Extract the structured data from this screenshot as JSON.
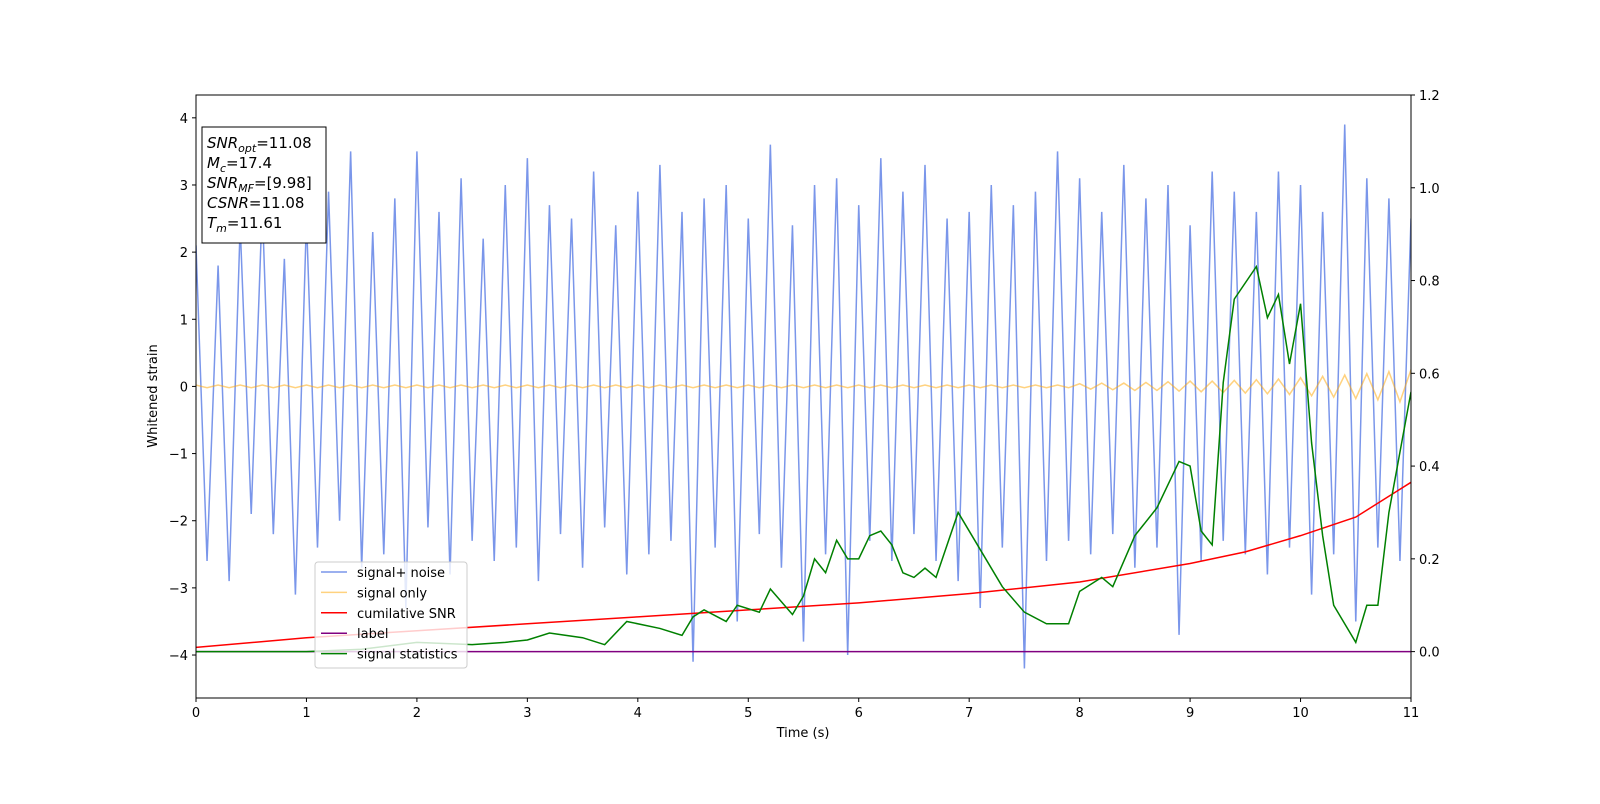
{
  "chart_data": {
    "type": "line",
    "xlabel": "Time (s)",
    "ylabel": "Whitened strain",
    "xlim": [
      0,
      11
    ],
    "ylim": [
      -4.64,
      4.34
    ],
    "y2lim": [
      -0.1,
      1.2
    ],
    "xticks": [
      0,
      1,
      2,
      3,
      4,
      5,
      6,
      7,
      8,
      9,
      10,
      11
    ],
    "yticks": [
      {
        "value": -4,
        "label": "−4"
      },
      {
        "value": -3,
        "label": "−3"
      },
      {
        "value": -2,
        "label": "−2"
      },
      {
        "value": -1,
        "label": "−1"
      },
      0,
      1,
      2,
      3,
      4
    ],
    "y2ticks": [
      {
        "value": 0,
        "label": "0.0"
      },
      {
        "value": 0.2,
        "label": "0.2"
      },
      {
        "value": 0.4,
        "label": "0.4"
      },
      {
        "value": 0.6,
        "label": "0.6"
      },
      {
        "value": 0.8,
        "label": "0.8"
      },
      {
        "value": 1.0,
        "label": "1.0"
      },
      {
        "value": 1.2,
        "label": "1.2"
      }
    ],
    "legend": "lower left",
    "annotation": [
      {
        "main": "SNR",
        "sub": "opt",
        "rest": "=11.08"
      },
      {
        "main": "M",
        "sub": "c",
        "rest": "=17.4"
      },
      {
        "main": "SNR",
        "sub": "MF",
        "rest": "=[9.98]"
      },
      {
        "main": "CSNR",
        "rest": "=11.08"
      },
      {
        "main": "T",
        "sub": "m",
        "rest": "=11.61"
      }
    ],
    "x": [
      0,
      0.1,
      0.2,
      0.3,
      0.4,
      0.5,
      0.6,
      0.7,
      0.8,
      0.9,
      1,
      1.1,
      1.2,
      1.3,
      1.4,
      1.5,
      1.6,
      1.7,
      1.8,
      1.9,
      2,
      2.1,
      2.2,
      2.3,
      2.4,
      2.5,
      2.6,
      2.7,
      2.8,
      2.9,
      3,
      3.1,
      3.2,
      3.3,
      3.4,
      3.5,
      3.6,
      3.7,
      3.8,
      3.9,
      4,
      4.1,
      4.2,
      4.3,
      4.4,
      4.5,
      4.6,
      4.7,
      4.8,
      4.9,
      5,
      5.1,
      5.2,
      5.3,
      5.4,
      5.5,
      5.6,
      5.7,
      5.8,
      5.9,
      6,
      6.1,
      6.2,
      6.3,
      6.4,
      6.5,
      6.6,
      6.7,
      6.8,
      6.9,
      7,
      7.1,
      7.2,
      7.3,
      7.4,
      7.5,
      7.6,
      7.7,
      7.8,
      7.9,
      8,
      8.1,
      8.2,
      8.3,
      8.4,
      8.5,
      8.6,
      8.7,
      8.8,
      8.9,
      9,
      9.1,
      9.2,
      9.3,
      9.4,
      9.5,
      9.6,
      9.7,
      9.8,
      9.9,
      10,
      10.1,
      10.2,
      10.3,
      10.4,
      10.5,
      10.6,
      10.7,
      10.8,
      10.9,
      11
    ],
    "series": [
      {
        "name": "signal+ noise",
        "color": "#4169e1",
        "opacity": 0.7,
        "values": [
          2.1,
          -2.6,
          1.8,
          -2.9,
          2.4,
          -1.9,
          2.7,
          -2.2,
          1.9,
          -3.1,
          2.5,
          -2.4,
          2.9,
          -2.0,
          3.5,
          -2.7,
          2.3,
          -2.5,
          2.8,
          -3.3,
          3.5,
          -2.1,
          2.6,
          -2.8,
          3.1,
          -2.3,
          2.2,
          -2.6,
          3.0,
          -2.4,
          3.4,
          -2.9,
          2.7,
          -2.2,
          2.5,
          -2.7,
          3.2,
          -2.1,
          2.4,
          -2.8,
          2.9,
          -2.5,
          3.3,
          -2.3,
          2.6,
          -4.1,
          2.8,
          -2.4,
          3.0,
          -3.5,
          2.5,
          -2.2,
          3.6,
          -2.7,
          2.4,
          -3.8,
          3.0,
          -2.5,
          3.1,
          -4.0,
          2.7,
          -2.3,
          3.4,
          -2.6,
          2.9,
          -2.2,
          3.3,
          -2.6,
          2.5,
          -2.9,
          2.6,
          -3.3,
          3.0,
          -2.4,
          2.7,
          -4.2,
          2.9,
          -2.6,
          3.5,
          -2.3,
          3.1,
          -2.5,
          2.6,
          -2.2,
          3.3,
          -2.7,
          2.8,
          -2.4,
          3.0,
          -3.7,
          2.4,
          -2.6,
          3.2,
          -2.3,
          2.9,
          -2.5,
          2.6,
          -2.8,
          3.2,
          -2.4,
          3.0,
          -3.1,
          2.6,
          -2.5,
          3.9,
          -3.5,
          3.1,
          -2.4,
          2.8,
          -2.6,
          2.5
        ]
      },
      {
        "name": "signal only",
        "color": "#ffa500",
        "opacity": 0.5,
        "values": [
          0.02,
          -0.02,
          0.02,
          -0.02,
          0.02,
          -0.02,
          0.02,
          -0.02,
          0.02,
          -0.02,
          0.02,
          -0.02,
          0.02,
          -0.02,
          0.02,
          -0.02,
          0.02,
          -0.02,
          0.02,
          -0.02,
          0.02,
          -0.02,
          0.02,
          -0.02,
          0.02,
          -0.02,
          0.02,
          -0.02,
          0.02,
          -0.02,
          0.02,
          -0.02,
          0.02,
          -0.02,
          0.02,
          -0.02,
          0.02,
          -0.02,
          0.02,
          -0.02,
          0.02,
          -0.02,
          0.02,
          -0.02,
          0.02,
          -0.02,
          0.02,
          -0.02,
          0.02,
          -0.02,
          0.02,
          -0.02,
          0.02,
          -0.02,
          0.02,
          -0.02,
          0.02,
          -0.02,
          0.02,
          -0.02,
          0.02,
          -0.02,
          0.02,
          -0.02,
          0.02,
          -0.02,
          0.02,
          -0.02,
          0.02,
          -0.02,
          0.02,
          -0.02,
          0.02,
          -0.02,
          0.02,
          -0.02,
          0.02,
          -0.02,
          0.02,
          -0.02,
          0.04,
          -0.04,
          0.05,
          -0.05,
          0.05,
          -0.06,
          0.06,
          -0.06,
          0.07,
          -0.07,
          0.08,
          -0.08,
          0.08,
          -0.09,
          0.09,
          -0.1,
          0.1,
          -0.11,
          0.11,
          -0.12,
          0.13,
          -0.14,
          0.15,
          -0.16,
          0.17,
          -0.18,
          0.19,
          -0.2,
          0.22,
          -0.23,
          0.25
        ]
      },
      {
        "name": "cumilative SNR",
        "color": "#ff0000",
        "axis": "y2",
        "x": [
          0,
          1,
          2,
          3,
          4,
          5,
          6,
          7,
          8,
          9,
          9.5,
          10,
          10.5,
          11
        ],
        "values": [
          0.009,
          0.03,
          0.045,
          0.06,
          0.075,
          0.09,
          0.105,
          0.125,
          0.15,
          0.19,
          0.215,
          0.25,
          0.29,
          0.365
        ]
      },
      {
        "name": "label",
        "color": "#800080",
        "axis": "y2",
        "x": [
          0,
          11
        ],
        "values": [
          0,
          0
        ]
      },
      {
        "name": "signal statistics",
        "color": "#008000",
        "axis": "y2",
        "x": [
          0,
          0.5,
          1,
          1.5,
          2,
          2.5,
          2.8,
          3,
          3.2,
          3.5,
          3.7,
          3.9,
          4.2,
          4.4,
          4.5,
          4.6,
          4.8,
          4.9,
          5.1,
          5.2,
          5.4,
          5.5,
          5.6,
          5.7,
          5.8,
          5.9,
          6,
          6.1,
          6.2,
          6.3,
          6.4,
          6.5,
          6.6,
          6.7,
          6.9,
          7.1,
          7.3,
          7.5,
          7.7,
          7.9,
          8,
          8.2,
          8.3,
          8.5,
          8.7,
          8.9,
          9,
          9.1,
          9.2,
          9.3,
          9.4,
          9.6,
          9.7,
          9.8,
          9.9,
          10,
          10.1,
          10.2,
          10.3,
          10.5,
          10.6,
          10.7,
          10.8,
          10.9,
          11
        ],
        "values": [
          0,
          0,
          0,
          0.005,
          0.02,
          0.015,
          0.02,
          0.025,
          0.04,
          0.03,
          0.015,
          0.065,
          0.05,
          0.035,
          0.075,
          0.09,
          0.065,
          0.1,
          0.085,
          0.135,
          0.08,
          0.12,
          0.2,
          0.17,
          0.24,
          0.2,
          0.2,
          0.25,
          0.26,
          0.23,
          0.17,
          0.16,
          0.18,
          0.16,
          0.3,
          0.22,
          0.14,
          0.085,
          0.06,
          0.06,
          0.13,
          0.16,
          0.14,
          0.25,
          0.31,
          0.41,
          0.4,
          0.26,
          0.23,
          0.58,
          0.76,
          0.83,
          0.72,
          0.77,
          0.62,
          0.75,
          0.45,
          0.25,
          0.1,
          0.02,
          0.1,
          0.1,
          0.3,
          0.43,
          0.56
        ]
      }
    ]
  }
}
